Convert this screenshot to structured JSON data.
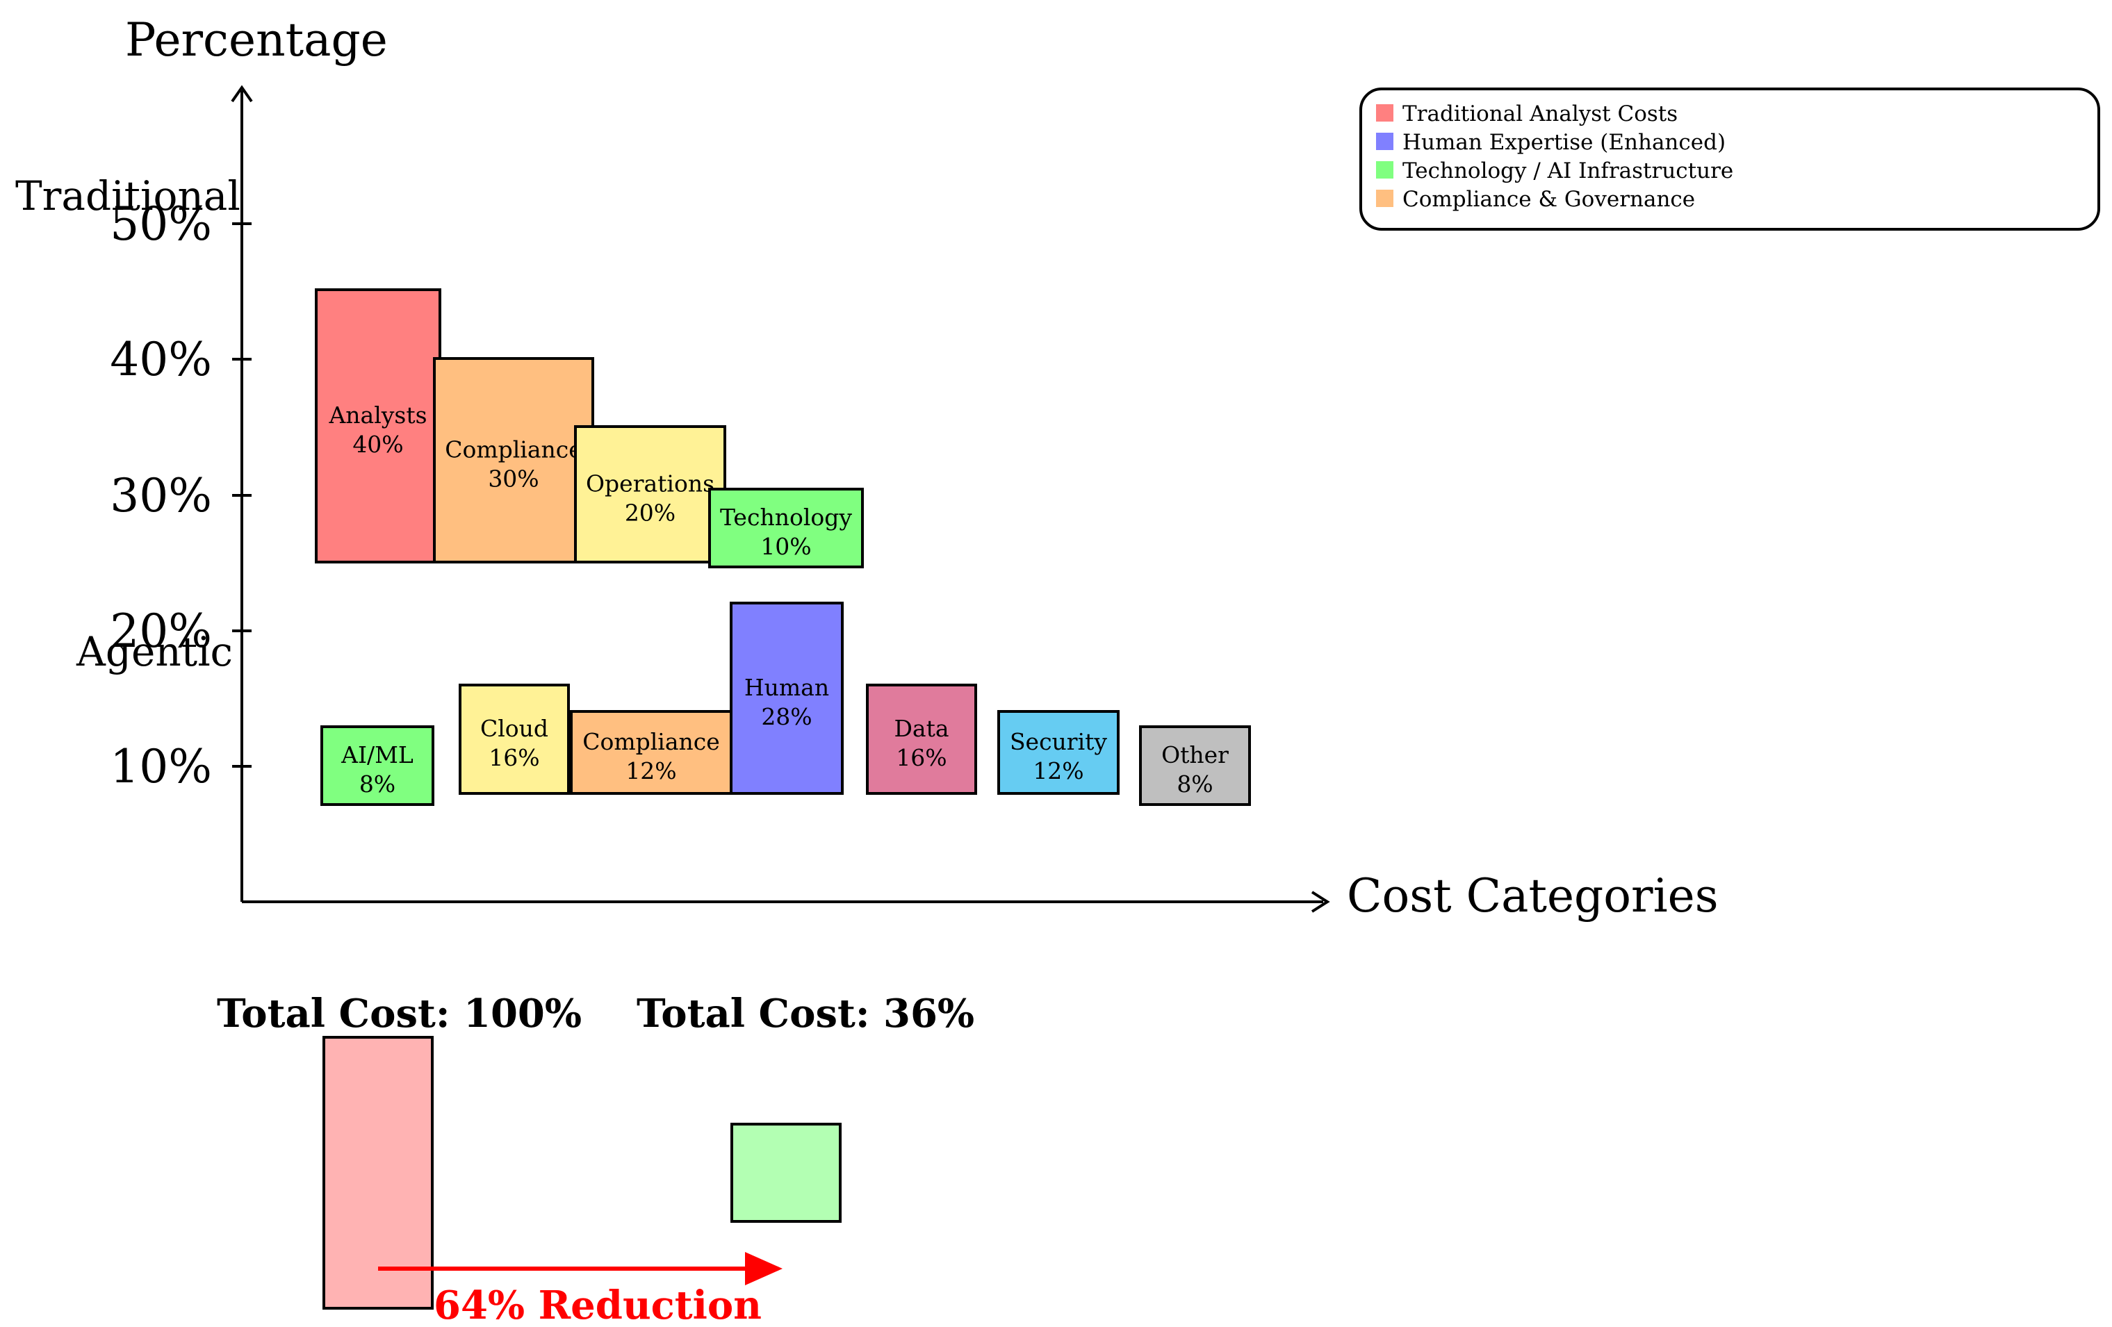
{
  "chart_data": {
    "type": "bar",
    "ylabel": "Percentage",
    "xlabel": "Cost Categories",
    "yticks": [
      "10%",
      "20%",
      "30%",
      "40%",
      "50%"
    ],
    "groups": [
      {
        "name": "Traditional",
        "bars": [
          {
            "label": "Analysts",
            "value_label": "40%",
            "color": "#ff8080"
          },
          {
            "label": "Compliance",
            "value_label": "30%",
            "color": "#ffbf80"
          },
          {
            "label": "Operations",
            "value_label": "20%",
            "color": "#fff296"
          },
          {
            "label": "Technology",
            "value_label": "10%",
            "color": "#80ff80"
          }
        ]
      },
      {
        "name": "Agentic",
        "bars": [
          {
            "label": "AI/ML",
            "value_label": "8%",
            "color": "#80ff80"
          },
          {
            "label": "Cloud",
            "value_label": "16%",
            "color": "#fff296"
          },
          {
            "label": "Compliance",
            "value_label": "12%",
            "color": "#ffbf80"
          },
          {
            "label": "Human",
            "value_label": "28%",
            "color": "#8080ff"
          },
          {
            "label": "Data",
            "value_label": "16%",
            "color": "#e07b9c"
          },
          {
            "label": "Security",
            "value_label": "12%",
            "color": "#66ccf2"
          },
          {
            "label": "Other",
            "value_label": "8%",
            "color": "#bfbfbf"
          }
        ]
      }
    ],
    "legend": [
      {
        "label": "Traditional Analyst Costs",
        "color": "#ff8080"
      },
      {
        "label": "Human Expertise (Enhanced)",
        "color": "#8080ff"
      },
      {
        "label": "Technology / AI Infrastructure",
        "color": "#80ff80"
      },
      {
        "label": "Compliance & Governance",
        "color": "#ffbf80"
      }
    ],
    "legend_position": "top-right",
    "totals": [
      {
        "label": "Total Cost: 100%",
        "value": 100,
        "color": "#ffb3b3"
      },
      {
        "label": "Total Cost: 36%",
        "value": 36,
        "color": "#b3ffb3"
      }
    ],
    "annotation": "64% Reduction",
    "annotation_color": "#ff0000"
  }
}
